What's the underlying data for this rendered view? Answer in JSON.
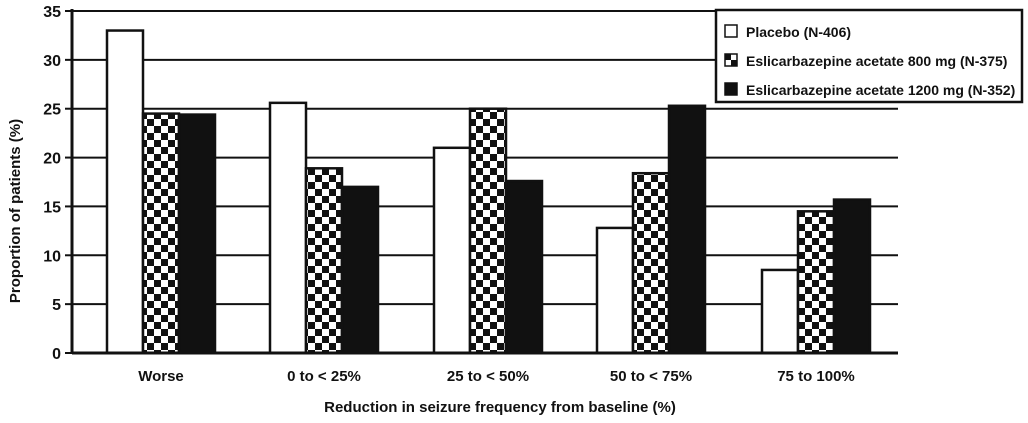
{
  "chart_data": {
    "type": "bar",
    "title": "",
    "xlabel": "Reduction in seizure frequency from baseline (%)",
    "ylabel": "Proportion of patients (%)",
    "ylim": [
      0,
      35
    ],
    "yticks": [
      0,
      5,
      10,
      15,
      20,
      25,
      30,
      35
    ],
    "grid": true,
    "legend_position": "top-right",
    "categories": [
      "Worse",
      "0 to < 25%",
      "25 to < 50%",
      "50 to < 75%",
      "75 to 100%"
    ],
    "series": [
      {
        "name": "Placebo (N-406)",
        "values": [
          33,
          25.6,
          21,
          12.8,
          8.5
        ],
        "fill": "white"
      },
      {
        "name": "Eslicarbazepine acetate 800 mg (N-375)",
        "values": [
          24.5,
          18.9,
          25,
          18.4,
          14.5
        ],
        "fill": "checker"
      },
      {
        "name": "Eslicarbazepine acetate 1200 mg (N-352)",
        "values": [
          24.4,
          17,
          17.6,
          25.3,
          15.7
        ],
        "fill": "black"
      }
    ],
    "colors": {
      "ink": "#111111",
      "background": "#ffffff"
    }
  }
}
